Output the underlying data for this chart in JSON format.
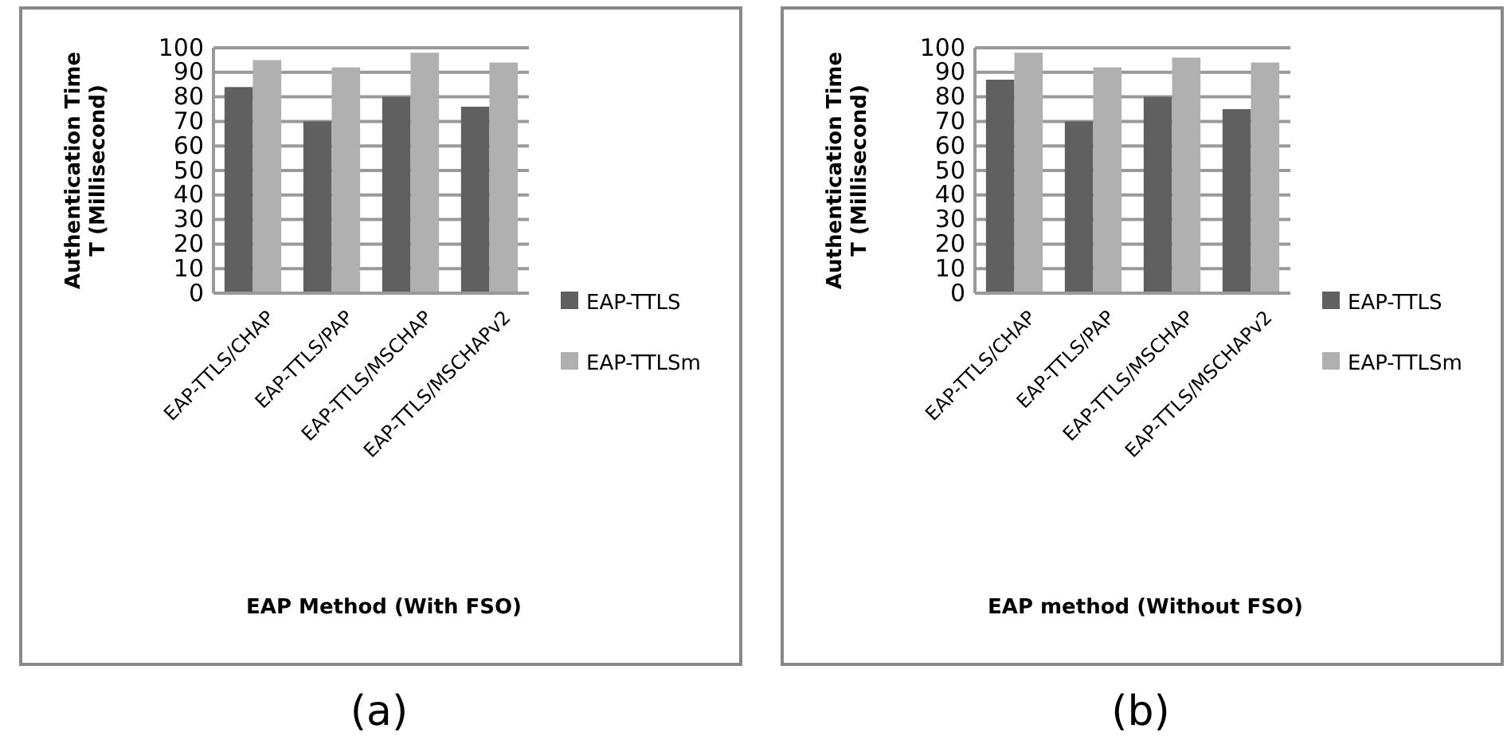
{
  "chart_data": [
    {
      "type": "bar",
      "xlabel": "EAP Method (With FSO)",
      "ylabel": "Authentication Time T (Millisecond)",
      "categories": [
        "EAP-TTLS/CHAP",
        "EAP-TTLS/PAP",
        "EAP-TTLS/MSCHAP",
        "EAP-TTLS/MSCHAPv2"
      ],
      "series": [
        {
          "name": "EAP-TTLS",
          "color": "#606060",
          "values": [
            84,
            70,
            80,
            76
          ]
        },
        {
          "name": "EAP-TTLSm",
          "color": "#b0b0b0",
          "values": [
            95,
            92,
            98,
            94
          ]
        }
      ],
      "ylim": [
        0,
        100
      ],
      "yticks": [
        0,
        10,
        20,
        30,
        40,
        50,
        60,
        70,
        80,
        90,
        100
      ],
      "grid": "y",
      "legend": "right",
      "annotations": [
        "(a)"
      ]
    },
    {
      "type": "bar",
      "xlabel": "EAP method (Without FSO)",
      "ylabel": "Authentication Time T (Millisecond)",
      "categories": [
        "EAP-TTLS/CHAP",
        "EAP-TTLS/PAP",
        "EAP-TTLS/MSCHAP",
        "EAP-TTLS/MSCHAPv2"
      ],
      "series": [
        {
          "name": "EAP-TTLS",
          "color": "#606060",
          "values": [
            87,
            70,
            80,
            75
          ]
        },
        {
          "name": "EAP-TTLSm",
          "color": "#b0b0b0",
          "values": [
            98,
            92,
            96,
            94
          ]
        }
      ],
      "ylim": [
        0,
        100
      ],
      "yticks": [
        0,
        10,
        20,
        30,
        40,
        50,
        60,
        70,
        80,
        90,
        100
      ],
      "grid": "y",
      "legend": "right",
      "annotations": [
        "(b)"
      ]
    }
  ]
}
